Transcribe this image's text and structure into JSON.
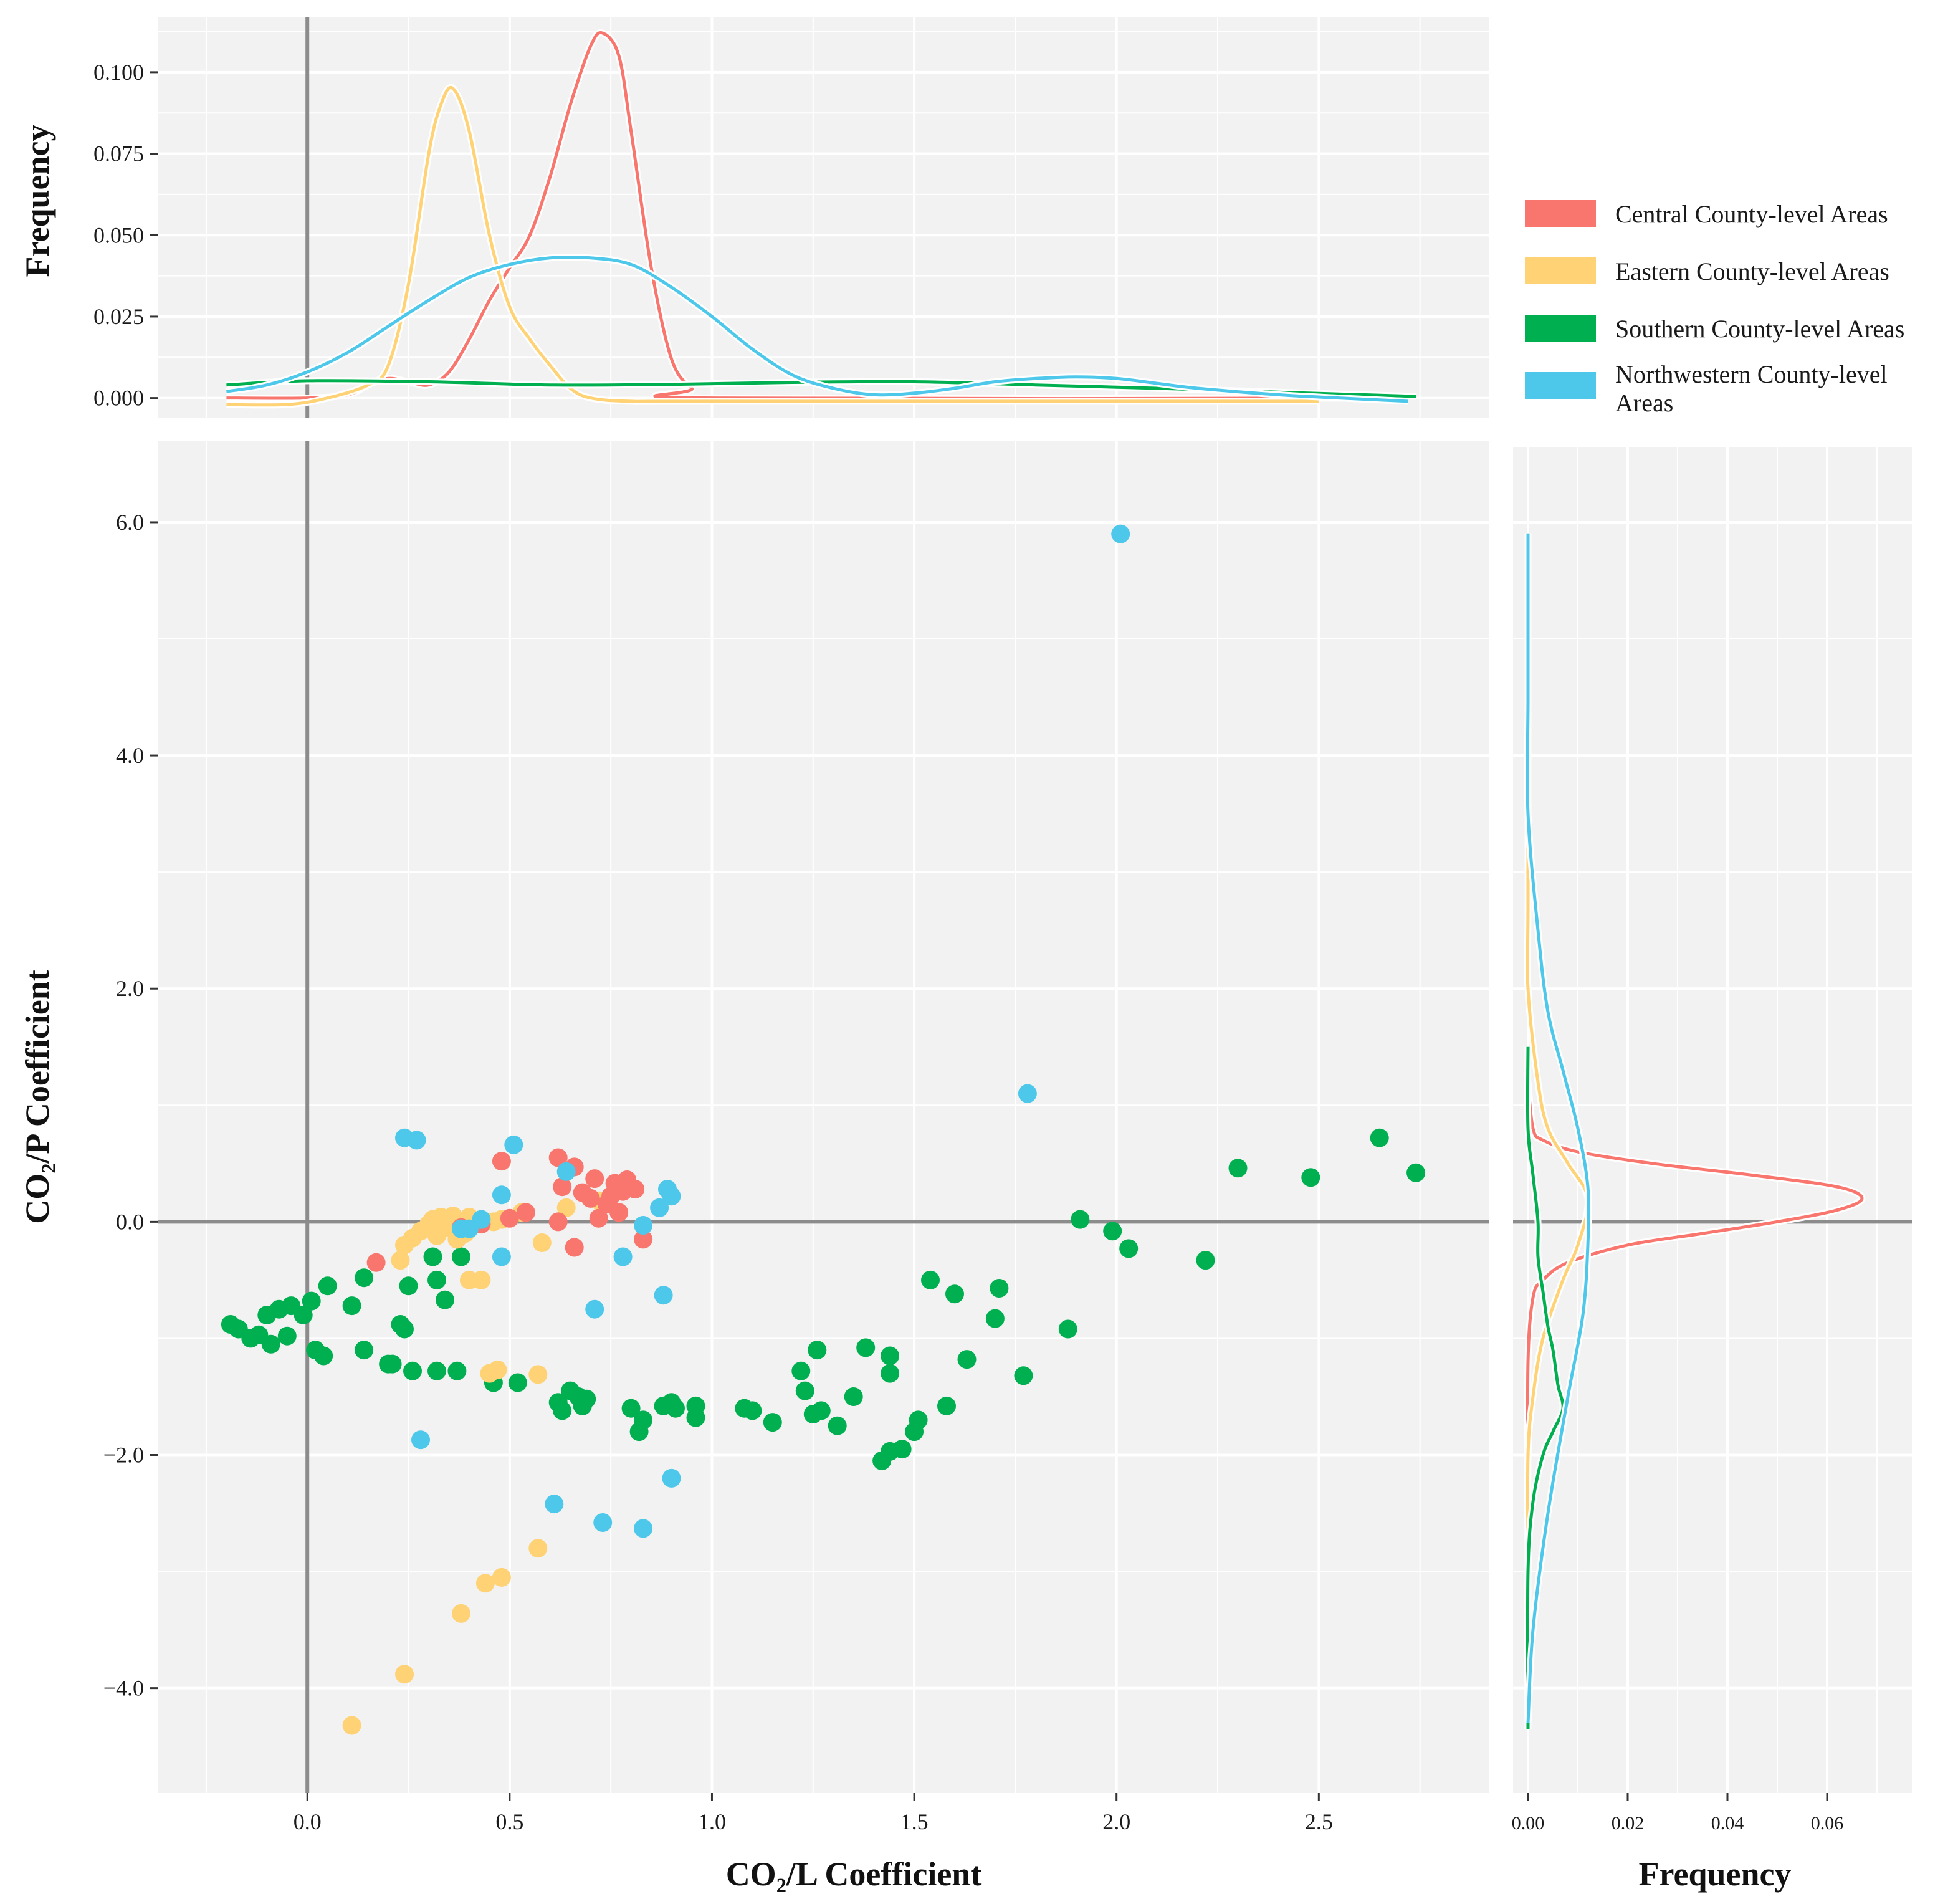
{
  "chart_data": {
    "type": "scatter",
    "xlabel": "CO₂/L  Coefficient",
    "ylabel": "CO₂/P  Coefficient",
    "top_ylabel": "Frequency",
    "right_xlabel": "Frequency",
    "xlim": [
      -0.37,
      2.92
    ],
    "ylim": [
      -4.9,
      6.7
    ],
    "x_ticks": [
      0.0,
      0.5,
      1.0,
      1.5,
      2.0,
      2.5
    ],
    "x_tick_labels": [
      "0.0",
      "0.5",
      "1.0",
      "1.5",
      "2.0",
      "2.5"
    ],
    "y_ticks": [
      -4.0,
      -2.0,
      0.0,
      2.0,
      4.0,
      6.0
    ],
    "y_tick_labels": [
      "−4.0",
      "−2.0",
      "0.0",
      "2.0",
      "4.0",
      "6.0"
    ],
    "top_density_ylim": [
      -0.006,
      0.117
    ],
    "top_density_ticks": [
      0.0,
      0.025,
      0.05,
      0.075,
      0.1
    ],
    "top_density_tick_labels": [
      "0.000",
      "0.025",
      "0.050",
      "0.075",
      "0.100"
    ],
    "right_density_xlim": [
      -0.003,
      0.077
    ],
    "right_density_ticks": [
      0.0,
      0.02,
      0.04,
      0.06
    ],
    "right_density_tick_labels": [
      "0.00",
      "0.02",
      "0.04",
      "0.06"
    ],
    "legend_position": "right",
    "grid": true,
    "series": [
      {
        "name": "Central County-level Areas",
        "color": "#F8766D",
        "points": [
          [
            0.17,
            -0.35
          ],
          [
            0.48,
            0.52
          ],
          [
            0.62,
            0.55
          ],
          [
            0.66,
            0.47
          ],
          [
            0.71,
            0.37
          ],
          [
            0.63,
            0.3
          ],
          [
            0.76,
            0.33
          ],
          [
            0.79,
            0.36
          ],
          [
            0.81,
            0.28
          ],
          [
            0.7,
            0.2
          ],
          [
            0.74,
            0.15
          ],
          [
            0.78,
            0.26
          ],
          [
            0.72,
            0.03
          ],
          [
            0.77,
            0.08
          ],
          [
            0.62,
            0.0
          ],
          [
            0.5,
            0.03
          ],
          [
            0.54,
            0.08
          ],
          [
            0.43,
            -0.02
          ],
          [
            0.38,
            -0.05
          ],
          [
            0.66,
            -0.22
          ],
          [
            0.83,
            -0.15
          ],
          [
            0.68,
            0.25
          ],
          [
            0.75,
            0.22
          ]
        ],
        "density_x": [
          [
            -0.2,
            0.0
          ],
          [
            0.0,
            0.0
          ],
          [
            0.1,
            0.001
          ],
          [
            0.15,
            0.004
          ],
          [
            0.2,
            0.006
          ],
          [
            0.25,
            0.005
          ],
          [
            0.3,
            0.004
          ],
          [
            0.35,
            0.008
          ],
          [
            0.4,
            0.018
          ],
          [
            0.45,
            0.03
          ],
          [
            0.5,
            0.04
          ],
          [
            0.55,
            0.05
          ],
          [
            0.6,
            0.068
          ],
          [
            0.65,
            0.09
          ],
          [
            0.7,
            0.108
          ],
          [
            0.73,
            0.112
          ],
          [
            0.77,
            0.105
          ],
          [
            0.8,
            0.082
          ],
          [
            0.85,
            0.04
          ],
          [
            0.9,
            0.012
          ],
          [
            0.95,
            0.003
          ],
          [
            1.0,
            0.0
          ],
          [
            2.72,
            0.0
          ]
        ],
        "density_y": [
          [
            -2.4,
            0.0
          ],
          [
            -1.2,
            0.0
          ],
          [
            -0.65,
            0.001
          ],
          [
            -0.5,
            0.003
          ],
          [
            -0.35,
            0.008
          ],
          [
            -0.2,
            0.02
          ],
          [
            -0.1,
            0.035
          ],
          [
            0.0,
            0.05
          ],
          [
            0.1,
            0.062
          ],
          [
            0.2,
            0.067
          ],
          [
            0.3,
            0.062
          ],
          [
            0.4,
            0.045
          ],
          [
            0.5,
            0.025
          ],
          [
            0.6,
            0.01
          ],
          [
            0.7,
            0.003
          ],
          [
            0.8,
            0.001
          ],
          [
            1.2,
            0.0
          ]
        ]
      },
      {
        "name": "Eastern County-level Areas",
        "color": "#FFD275",
        "points": [
          [
            0.31,
            0.02
          ],
          [
            0.33,
            0.04
          ],
          [
            0.35,
            -0.05
          ],
          [
            0.36,
            0.05
          ],
          [
            0.39,
            -0.1
          ],
          [
            0.4,
            0.04
          ],
          [
            0.28,
            -0.08
          ],
          [
            0.26,
            -0.14
          ],
          [
            0.24,
            -0.2
          ],
          [
            0.23,
            -0.33
          ],
          [
            0.34,
            -0.02
          ],
          [
            0.37,
            -0.15
          ],
          [
            0.4,
            -0.5
          ],
          [
            0.43,
            -0.5
          ],
          [
            0.46,
            0.0
          ],
          [
            0.48,
            0.02
          ],
          [
            0.53,
            0.08
          ],
          [
            0.58,
            -0.18
          ],
          [
            0.64,
            0.12
          ],
          [
            0.72,
            0.18
          ],
          [
            0.45,
            -1.3
          ],
          [
            0.47,
            -1.27
          ],
          [
            0.57,
            -1.31
          ],
          [
            0.44,
            -3.1
          ],
          [
            0.48,
            -3.05
          ],
          [
            0.57,
            -2.8
          ],
          [
            0.38,
            -3.36
          ],
          [
            0.24,
            -3.88
          ],
          [
            0.11,
            -4.32
          ],
          [
            0.3,
            -0.02
          ],
          [
            0.32,
            -0.12
          ]
        ],
        "density_x": [
          [
            -0.2,
            -0.002
          ],
          [
            -0.05,
            -0.002
          ],
          [
            0.05,
            0.0
          ],
          [
            0.15,
            0.004
          ],
          [
            0.2,
            0.01
          ],
          [
            0.25,
            0.035
          ],
          [
            0.3,
            0.075
          ],
          [
            0.33,
            0.09
          ],
          [
            0.36,
            0.095
          ],
          [
            0.4,
            0.082
          ],
          [
            0.45,
            0.05
          ],
          [
            0.5,
            0.028
          ],
          [
            0.55,
            0.018
          ],
          [
            0.6,
            0.01
          ],
          [
            0.65,
            0.003
          ],
          [
            0.7,
            0.0
          ],
          [
            0.8,
            -0.001
          ],
          [
            1.0,
            -0.001
          ],
          [
            2.5,
            -0.001
          ]
        ],
        "density_y": [
          [
            -4.35,
            0.0
          ],
          [
            -3.0,
            0.0
          ],
          [
            -2.0,
            0.0
          ],
          [
            -1.5,
            0.001
          ],
          [
            -1.0,
            0.003
          ],
          [
            -0.5,
            0.007
          ],
          [
            -0.2,
            0.01
          ],
          [
            0.2,
            0.012
          ],
          [
            0.5,
            0.008
          ],
          [
            0.8,
            0.004
          ],
          [
            1.2,
            0.002
          ],
          [
            2.0,
            0.0
          ],
          [
            2.8,
            0.0
          ],
          [
            5.9,
            0.0
          ]
        ]
      },
      {
        "name": "Southern County-level Areas",
        "color": "#00B050",
        "points": [
          [
            -0.19,
            -0.88
          ],
          [
            -0.17,
            -0.92
          ],
          [
            -0.14,
            -1.0
          ],
          [
            -0.12,
            -0.97
          ],
          [
            -0.1,
            -0.8
          ],
          [
            -0.09,
            -1.05
          ],
          [
            -0.07,
            -0.75
          ],
          [
            -0.05,
            -0.98
          ],
          [
            -0.04,
            -0.72
          ],
          [
            -0.01,
            -0.8
          ],
          [
            0.01,
            -0.68
          ],
          [
            0.02,
            -1.1
          ],
          [
            0.04,
            -1.15
          ],
          [
            0.05,
            -0.55
          ],
          [
            0.11,
            -0.72
          ],
          [
            0.14,
            -0.48
          ],
          [
            0.14,
            -1.1
          ],
          [
            0.2,
            -1.22
          ],
          [
            0.21,
            -1.22
          ],
          [
            0.23,
            -0.88
          ],
          [
            0.24,
            -0.92
          ],
          [
            0.25,
            -0.55
          ],
          [
            0.26,
            -1.28
          ],
          [
            0.31,
            -0.3
          ],
          [
            0.32,
            -0.5
          ],
          [
            0.32,
            -1.28
          ],
          [
            0.34,
            -0.67
          ],
          [
            0.37,
            -1.28
          ],
          [
            0.38,
            -0.3
          ],
          [
            0.46,
            -1.38
          ],
          [
            0.52,
            -1.38
          ],
          [
            0.62,
            -1.55
          ],
          [
            0.63,
            -1.62
          ],
          [
            0.65,
            -1.45
          ],
          [
            0.67,
            -1.5
          ],
          [
            0.68,
            -1.58
          ],
          [
            0.69,
            -1.52
          ],
          [
            0.8,
            -1.6
          ],
          [
            0.82,
            -1.8
          ],
          [
            0.83,
            -1.7
          ],
          [
            0.88,
            -1.58
          ],
          [
            0.9,
            -1.55
          ],
          [
            0.91,
            -1.6
          ],
          [
            0.96,
            -1.58
          ],
          [
            0.96,
            -1.68
          ],
          [
            1.08,
            -1.6
          ],
          [
            1.1,
            -1.62
          ],
          [
            1.15,
            -1.72
          ],
          [
            1.22,
            -1.28
          ],
          [
            1.23,
            -1.45
          ],
          [
            1.25,
            -1.65
          ],
          [
            1.26,
            -1.1
          ],
          [
            1.27,
            -1.62
          ],
          [
            1.31,
            -1.75
          ],
          [
            1.35,
            -1.5
          ],
          [
            1.38,
            -1.08
          ],
          [
            1.42,
            -2.05
          ],
          [
            1.44,
            -1.97
          ],
          [
            1.44,
            -1.15
          ],
          [
            1.47,
            -1.95
          ],
          [
            1.44,
            -1.3
          ],
          [
            1.5,
            -1.8
          ],
          [
            1.51,
            -1.7
          ],
          [
            1.54,
            -0.5
          ],
          [
            1.58,
            -1.58
          ],
          [
            1.6,
            -0.62
          ],
          [
            1.63,
            -1.18
          ],
          [
            1.7,
            -0.83
          ],
          [
            1.71,
            -0.57
          ],
          [
            1.77,
            -1.32
          ],
          [
            1.88,
            -0.92
          ],
          [
            1.91,
            0.02
          ],
          [
            1.99,
            -0.08
          ],
          [
            2.03,
            -0.23
          ],
          [
            2.22,
            -0.33
          ],
          [
            2.3,
            0.46
          ],
          [
            2.48,
            0.38
          ],
          [
            2.65,
            0.72
          ],
          [
            2.74,
            0.42
          ]
        ],
        "density_x": [
          [
            -0.2,
            0.004
          ],
          [
            0.0,
            0.0053
          ],
          [
            0.3,
            0.005
          ],
          [
            0.6,
            0.004
          ],
          [
            0.9,
            0.0042
          ],
          [
            1.2,
            0.0048
          ],
          [
            1.5,
            0.005
          ],
          [
            1.8,
            0.004
          ],
          [
            2.1,
            0.003
          ],
          [
            2.4,
            0.0018
          ],
          [
            2.74,
            0.0005
          ]
        ],
        "density_y": [
          [
            -4.35,
            0.0
          ],
          [
            -3.0,
            0.0
          ],
          [
            -2.4,
            0.001
          ],
          [
            -2.0,
            0.003
          ],
          [
            -1.8,
            0.005
          ],
          [
            -1.6,
            0.007
          ],
          [
            -1.4,
            0.006
          ],
          [
            -1.1,
            0.005
          ],
          [
            -0.9,
            0.004
          ],
          [
            -0.6,
            0.003
          ],
          [
            -0.3,
            0.002
          ],
          [
            0.0,
            0.002
          ],
          [
            0.4,
            0.001
          ],
          [
            0.8,
            0.0
          ],
          [
            1.5,
            0.0
          ]
        ]
      },
      {
        "name": "Northwestern County-level Areas",
        "color": "#4DC8EB",
        "points": [
          [
            0.24,
            0.72
          ],
          [
            0.27,
            0.7
          ],
          [
            0.51,
            0.66
          ],
          [
            0.64,
            0.43
          ],
          [
            0.48,
            0.23
          ],
          [
            0.89,
            0.28
          ],
          [
            0.9,
            0.22
          ],
          [
            0.87,
            0.12
          ],
          [
            0.83,
            -0.03
          ],
          [
            0.38,
            -0.06
          ],
          [
            0.4,
            -0.06
          ],
          [
            0.43,
            0.02
          ],
          [
            0.48,
            -0.3
          ],
          [
            0.78,
            -0.3
          ],
          [
            0.88,
            -0.63
          ],
          [
            0.71,
            -0.75
          ],
          [
            0.28,
            -1.87
          ],
          [
            0.61,
            -2.42
          ],
          [
            0.73,
            -2.58
          ],
          [
            0.83,
            -2.63
          ],
          [
            0.9,
            -2.2
          ],
          [
            1.78,
            1.1
          ],
          [
            2.01,
            5.9
          ]
        ],
        "density_x": [
          [
            -0.2,
            0.002
          ],
          [
            -0.1,
            0.004
          ],
          [
            0.0,
            0.008
          ],
          [
            0.1,
            0.014
          ],
          [
            0.2,
            0.022
          ],
          [
            0.3,
            0.03
          ],
          [
            0.4,
            0.037
          ],
          [
            0.5,
            0.041
          ],
          [
            0.6,
            0.043
          ],
          [
            0.7,
            0.043
          ],
          [
            0.8,
            0.041
          ],
          [
            0.9,
            0.034
          ],
          [
            1.0,
            0.025
          ],
          [
            1.1,
            0.015
          ],
          [
            1.2,
            0.007
          ],
          [
            1.3,
            0.003
          ],
          [
            1.4,
            0.001
          ],
          [
            1.5,
            0.0015
          ],
          [
            1.6,
            0.003
          ],
          [
            1.7,
            0.005
          ],
          [
            1.8,
            0.006
          ],
          [
            1.9,
            0.0065
          ],
          [
            2.0,
            0.006
          ],
          [
            2.1,
            0.0045
          ],
          [
            2.2,
            0.003
          ],
          [
            2.4,
            0.001
          ],
          [
            2.55,
            0.0
          ],
          [
            2.72,
            -0.001
          ]
        ],
        "density_y": [
          [
            -4.3,
            0.0
          ],
          [
            -3.5,
            0.001
          ],
          [
            -2.5,
            0.004
          ],
          [
            -1.5,
            0.008
          ],
          [
            -0.8,
            0.011
          ],
          [
            -0.2,
            0.012
          ],
          [
            0.3,
            0.012
          ],
          [
            0.8,
            0.01
          ],
          [
            1.3,
            0.007
          ],
          [
            1.8,
            0.004
          ],
          [
            2.5,
            0.002
          ],
          [
            3.5,
            0.0
          ],
          [
            4.5,
            0.0
          ],
          [
            5.9,
            0.0
          ]
        ]
      }
    ]
  }
}
